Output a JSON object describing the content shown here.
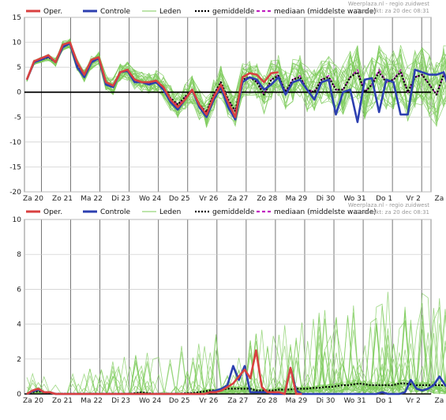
{
  "legend": {
    "items": [
      {
        "label": "Oper.",
        "color": "#d94040",
        "style": "thick"
      },
      {
        "label": "Controle",
        "color": "#2c3fb0",
        "style": "thick"
      },
      {
        "label": "Leden",
        "color": "#7ccb5a",
        "style": "thin"
      },
      {
        "label": "gemiddelde",
        "color": "#000000",
        "style": "dotted"
      },
      {
        "label": "mediaan (middelste waarde)",
        "color": "#c020c0",
        "style": "dashed"
      }
    ]
  },
  "credit": {
    "line1": "Weerplaza.nl - regio zuidwest",
    "line2": "Gemaakt: za 20 dec 08:31"
  },
  "chart_data": [
    {
      "type": "line",
      "x_labels": [
        "Za 20",
        "Zo 21",
        "Ma 22",
        "Di 23",
        "Wo 24",
        "Do 25",
        "Vr 26",
        "Za 27",
        "Zo 28",
        "Ma 29",
        "Di 30",
        "Wo 31",
        "Do 1",
        "Vr 2",
        "Za 3"
      ],
      "ylim": [
        -20,
        15
      ],
      "yticks": [
        15,
        10,
        5,
        0,
        -5,
        -10,
        -15,
        -20
      ],
      "zero_line": true,
      "grid": true,
      "series": [
        {
          "name": "Oper.",
          "values": [
            2.5,
            6.2,
            6.8,
            7.4,
            6.0,
            9.5,
            10.0,
            6.0,
            3.5,
            6.5,
            7.0,
            2.0,
            1.3,
            4.0,
            4.5,
            2.5,
            2.0,
            2.0,
            2.3,
            1.0,
            -1.5,
            -3.0,
            -1.5,
            0.5,
            -2.5,
            -4.5,
            -1.0,
            1.5,
            -2.0,
            -5.0,
            3.0,
            3.8,
            3.5,
            2.0,
            3.8,
            4.0
          ]
        },
        {
          "name": "Controle",
          "values": [
            2.5,
            6.0,
            6.5,
            7.2,
            6.0,
            9.0,
            9.8,
            5.0,
            3.0,
            6.0,
            6.8,
            1.5,
            1.0,
            4.0,
            4.3,
            2.0,
            2.0,
            1.5,
            2.0,
            0.5,
            -2.0,
            -3.5,
            -1.5,
            0.5,
            -3.0,
            -5.0,
            -1.5,
            1.0,
            -3.0,
            -5.5,
            2.0,
            3.0,
            2.5,
            0.5,
            1.5,
            3.0,
            -0.5,
            2.0,
            2.5,
            0.5,
            -1.5,
            2.0,
            2.5,
            -4.5,
            0.0,
            0.5,
            -6.0,
            2.5,
            2.8,
            -4.0,
            2.5,
            2.0,
            -4.5,
            -4.5,
            4.5,
            4.0,
            3.5,
            3.5,
            4.0,
            -0.5
          ]
        },
        {
          "name": "gemiddelde",
          "values": [
            2.5,
            6.0,
            6.5,
            7.0,
            6.0,
            9.3,
            9.8,
            5.5,
            3.2,
            6.0,
            6.8,
            2.0,
            1.2,
            4.0,
            4.3,
            2.5,
            2.0,
            1.8,
            2.3,
            1.0,
            -1.2,
            -2.5,
            -1.0,
            0.5,
            -2.5,
            -4.0,
            -0.5,
            2.0,
            -1.5,
            -3.8,
            2.5,
            3.0,
            2.0,
            -0.5,
            2.5,
            3.3,
            0.0,
            2.5,
            3.0,
            0.5,
            0.0,
            2.5,
            3.0,
            0.5,
            0.5,
            3.0,
            4.0,
            0.0,
            1.5,
            4.0,
            2.0,
            2.5,
            4.0,
            0.0,
            3.0,
            3.5,
            1.5,
            -0.5,
            3.5,
            3.0
          ]
        },
        {
          "name": "mediaan (middelste waarde)",
          "values": [
            2.5,
            6.0,
            6.5,
            7.0,
            6.0,
            9.3,
            9.8,
            5.5,
            3.2,
            6.0,
            6.8,
            2.0,
            1.2,
            4.0,
            4.3,
            2.5,
            2.0,
            1.8,
            2.3,
            1.0,
            -1.2,
            -2.5,
            -1.0,
            0.5,
            -2.5,
            -4.0,
            -0.5,
            2.0,
            -1.5,
            -3.8,
            2.5,
            3.0,
            2.0,
            -0.5,
            2.5,
            3.5,
            0.0,
            2.5,
            3.3,
            0.5,
            0.0,
            2.5,
            3.3,
            0.5,
            0.5,
            3.0,
            4.5,
            0.0,
            1.5,
            4.5,
            2.0,
            2.5,
            4.5,
            0.0,
            3.0,
            3.5,
            1.5,
            -0.5,
            3.5,
            3.0
          ]
        }
      ]
    },
    {
      "type": "line",
      "x_labels": [
        "Za 20",
        "Zo 21",
        "Ma 22",
        "Di 23",
        "Wo 24",
        "Do 25",
        "Vr 26",
        "Za 27",
        "Zo 28",
        "Ma 29",
        "Di 30",
        "Wo 31",
        "Do 1",
        "Vr 2",
        "Za 3"
      ],
      "ylim": [
        0,
        10
      ],
      "yticks": [
        10,
        8,
        6,
        4,
        2,
        0
      ],
      "zero_line": true,
      "grid": true,
      "series": [
        {
          "name": "Oper.",
          "values": [
            0,
            0.2,
            0.3,
            0.1,
            0.1,
            0.0,
            0.0,
            0,
            0,
            0,
            0,
            0,
            0,
            0,
            0,
            0,
            0,
            0,
            0,
            0,
            0,
            0,
            0,
            0,
            0,
            0,
            0,
            0,
            0,
            0,
            0,
            0,
            0.1,
            0.1,
            0.2,
            0.4,
            0.6,
            1.0,
            1.4,
            0.9,
            2.5,
            0.4,
            0.1,
            0.1,
            0.1,
            0.0,
            1.5,
            0.0,
            0.0
          ]
        },
        {
          "name": "Controle",
          "values": [
            0,
            0.15,
            0.25,
            0.1,
            0.1,
            0.0,
            0,
            0,
            0,
            0,
            0,
            0,
            0,
            0,
            0,
            0,
            0,
            0,
            0,
            0,
            0,
            0,
            0,
            0,
            0,
            0,
            0,
            0,
            0,
            0,
            0,
            0,
            0.1,
            0.2,
            0.3,
            0.5,
            1.6,
            0.8,
            1.6,
            0.1,
            0.1,
            0.1,
            0.1,
            0.0,
            0.0,
            0.0,
            1.5,
            0.2,
            0.0,
            0.0,
            0.0,
            0.0,
            0.0,
            0.0,
            0.0,
            0.0,
            0.0,
            0.0,
            0.0,
            0.0,
            0.0,
            0.0,
            0.1,
            0.0,
            0.0,
            0.0,
            0.1,
            0.8,
            0.3,
            0.2,
            0.3,
            0.5,
            1.0,
            0.5,
            0.2
          ]
        },
        {
          "name": "gemiddelde",
          "values": [
            0,
            0.1,
            0.15,
            0.1,
            0.05,
            0.02,
            0.02,
            0.02,
            0.02,
            0.02,
            0.02,
            0.02,
            0.02,
            0.02,
            0.02,
            0.02,
            0.02,
            0.02,
            0.02,
            0.05,
            0.1,
            0.05,
            0.02,
            0.02,
            0.02,
            0.02,
            0.02,
            0.02,
            0.05,
            0.05,
            0.1,
            0.15,
            0.2,
            0.2,
            0.25,
            0.3,
            0.3,
            0.3,
            0.3,
            0.3,
            0.2,
            0.2,
            0.2,
            0.2,
            0.25,
            0.25,
            0.25,
            0.3,
            0.3,
            0.3,
            0.35,
            0.35,
            0.4,
            0.4,
            0.45,
            0.5,
            0.5,
            0.55,
            0.6,
            0.55,
            0.5,
            0.5,
            0.5,
            0.5,
            0.5,
            0.6,
            0.6,
            0.55,
            0.5,
            0.5,
            0.5,
            0.5,
            0.5,
            0.5,
            0.5
          ]
        }
      ]
    }
  ]
}
